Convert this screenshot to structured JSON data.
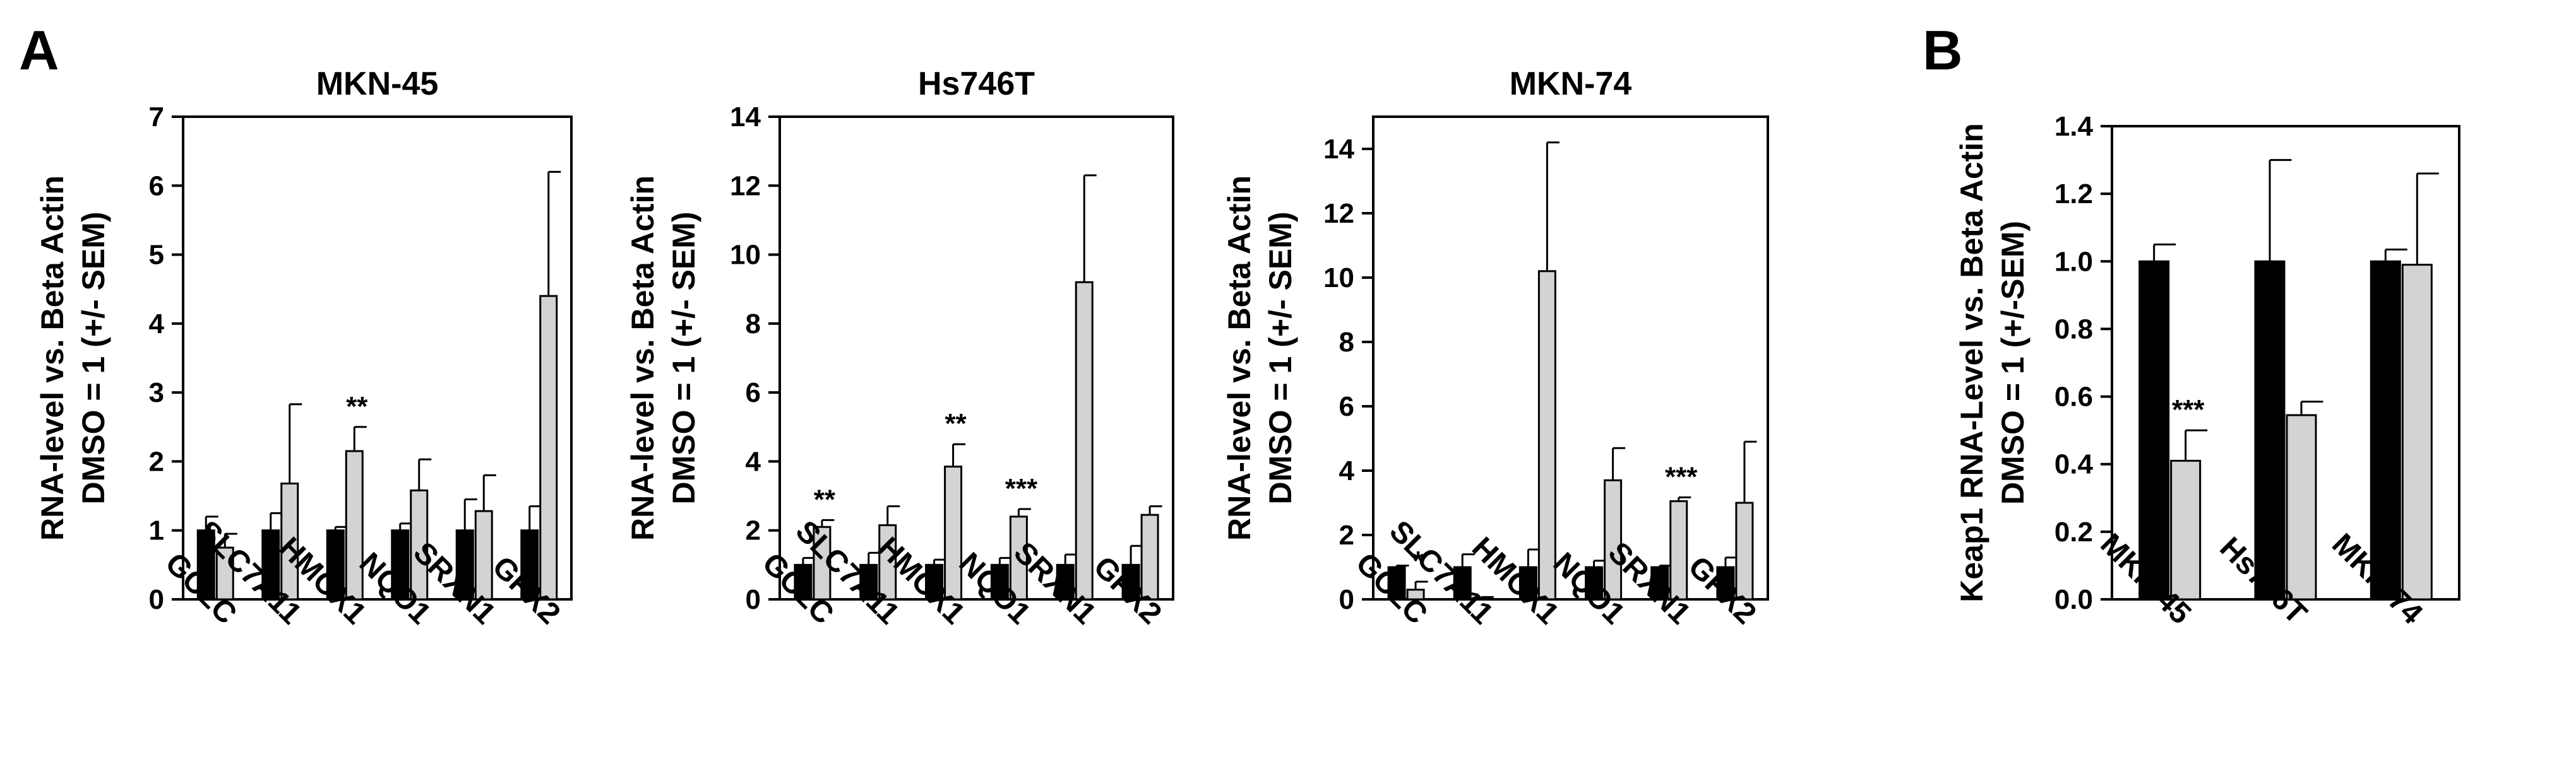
{
  "panels": {
    "a": "A",
    "b": "B"
  },
  "colors": {
    "dmso": "#000000",
    "treated": "#d3d3d3",
    "axis": "#000000"
  },
  "chart_data": [
    {
      "type": "bar",
      "panel": "A",
      "title": "MKN-45",
      "ylabel": [
        "RNA-level vs. Beta Actin",
        "DMSO = 1 (+/- SEM)"
      ],
      "ylim": [
        0,
        7
      ],
      "yticks": [
        0,
        1,
        2,
        3,
        4,
        5,
        6,
        7
      ],
      "categories": [
        "GCLC",
        "SLC7A11",
        "HMOX1",
        "NQO1",
        "SRXN1",
        "GPX2"
      ],
      "series": [
        {
          "values": [
            1.0,
            1.0,
            1.0,
            1.0,
            1.0,
            1.0
          ],
          "errors": [
            0.2,
            0.25,
            0.05,
            0.1,
            0.45,
            0.35
          ]
        },
        {
          "values": [
            0.75,
            1.68,
            2.15,
            1.58,
            1.28,
            4.4
          ],
          "errors": [
            0.2,
            1.15,
            0.35,
            0.45,
            0.52,
            1.8
          ]
        }
      ],
      "annotations": [
        {
          "category": "HMOX1",
          "text": "**"
        }
      ]
    },
    {
      "type": "bar",
      "panel": "A",
      "title": "Hs746T",
      "ylabel": [
        "RNA-level vs. Beta Actin",
        "DMSO = 1 (+/- SEM)"
      ],
      "ylim": [
        0,
        14
      ],
      "yticks": [
        0,
        2,
        4,
        6,
        8,
        10,
        12,
        14
      ],
      "categories": [
        "GCLC",
        "SLC7A11",
        "HMOX1",
        "NQO1",
        "SRXN1",
        "GPX2"
      ],
      "series": [
        {
          "values": [
            1.0,
            1.0,
            1.0,
            1.0,
            1.0,
            1.0
          ],
          "errors": [
            0.2,
            0.35,
            0.15,
            0.2,
            0.3,
            0.55
          ]
        },
        {
          "values": [
            2.1,
            2.15,
            3.85,
            2.4,
            9.2,
            2.45
          ],
          "errors": [
            0.2,
            0.55,
            0.65,
            0.22,
            3.1,
            0.25
          ]
        }
      ],
      "annotations": [
        {
          "category": "GCLC",
          "text": "**"
        },
        {
          "category": "HMOX1",
          "text": "**"
        },
        {
          "category": "NQO1",
          "text": "***"
        }
      ]
    },
    {
      "type": "bar",
      "panel": "A",
      "title": "MKN-74",
      "ylabel": [
        "RNA-level vs. Beta Actin",
        "DMSO = 1 (+/- SEM)"
      ],
      "ylim": [
        0,
        15
      ],
      "yticks": [
        0,
        2,
        4,
        6,
        8,
        10,
        12,
        14
      ],
      "categories": [
        "GCLC",
        "SLC7A11",
        "HMOX1",
        "NQO1",
        "SRXN1",
        "GPX2"
      ],
      "series": [
        {
          "values": [
            1.0,
            1.0,
            1.0,
            1.0,
            1.0,
            1.0
          ],
          "errors": [
            0.05,
            0.4,
            0.55,
            0.2,
            0.05,
            0.3
          ]
        },
        {
          "values": [
            0.3,
            0.05,
            10.2,
            3.7,
            3.05,
            3.0
          ],
          "errors": [
            0.25,
            0.02,
            4.0,
            1.0,
            0.12,
            1.9
          ]
        }
      ],
      "annotations": [
        {
          "category": "GCLC",
          "text": "*"
        },
        {
          "category": "SRXN1",
          "text": "***"
        }
      ]
    },
    {
      "type": "bar",
      "panel": "B",
      "title": "",
      "ylabel": [
        "Keap1 RNA-Level vs. Beta Actin",
        "DMSO = 1 (+/-SEM)"
      ],
      "ylim": [
        0,
        1.4
      ],
      "yticks": [
        0.0,
        0.2,
        0.4,
        0.6,
        0.8,
        1.0,
        1.2,
        1.4
      ],
      "categories": [
        "MKN-45",
        "Hs746T",
        "MKN-74"
      ],
      "series": [
        {
          "values": [
            1.0,
            1.0,
            1.0
          ],
          "errors": [
            0.05,
            0.3,
            0.035
          ]
        },
        {
          "values": [
            0.41,
            0.545,
            0.99
          ],
          "errors": [
            0.09,
            0.04,
            0.27
          ]
        }
      ],
      "annotations": [
        {
          "category": "MKN-45",
          "text": "***"
        }
      ]
    }
  ]
}
